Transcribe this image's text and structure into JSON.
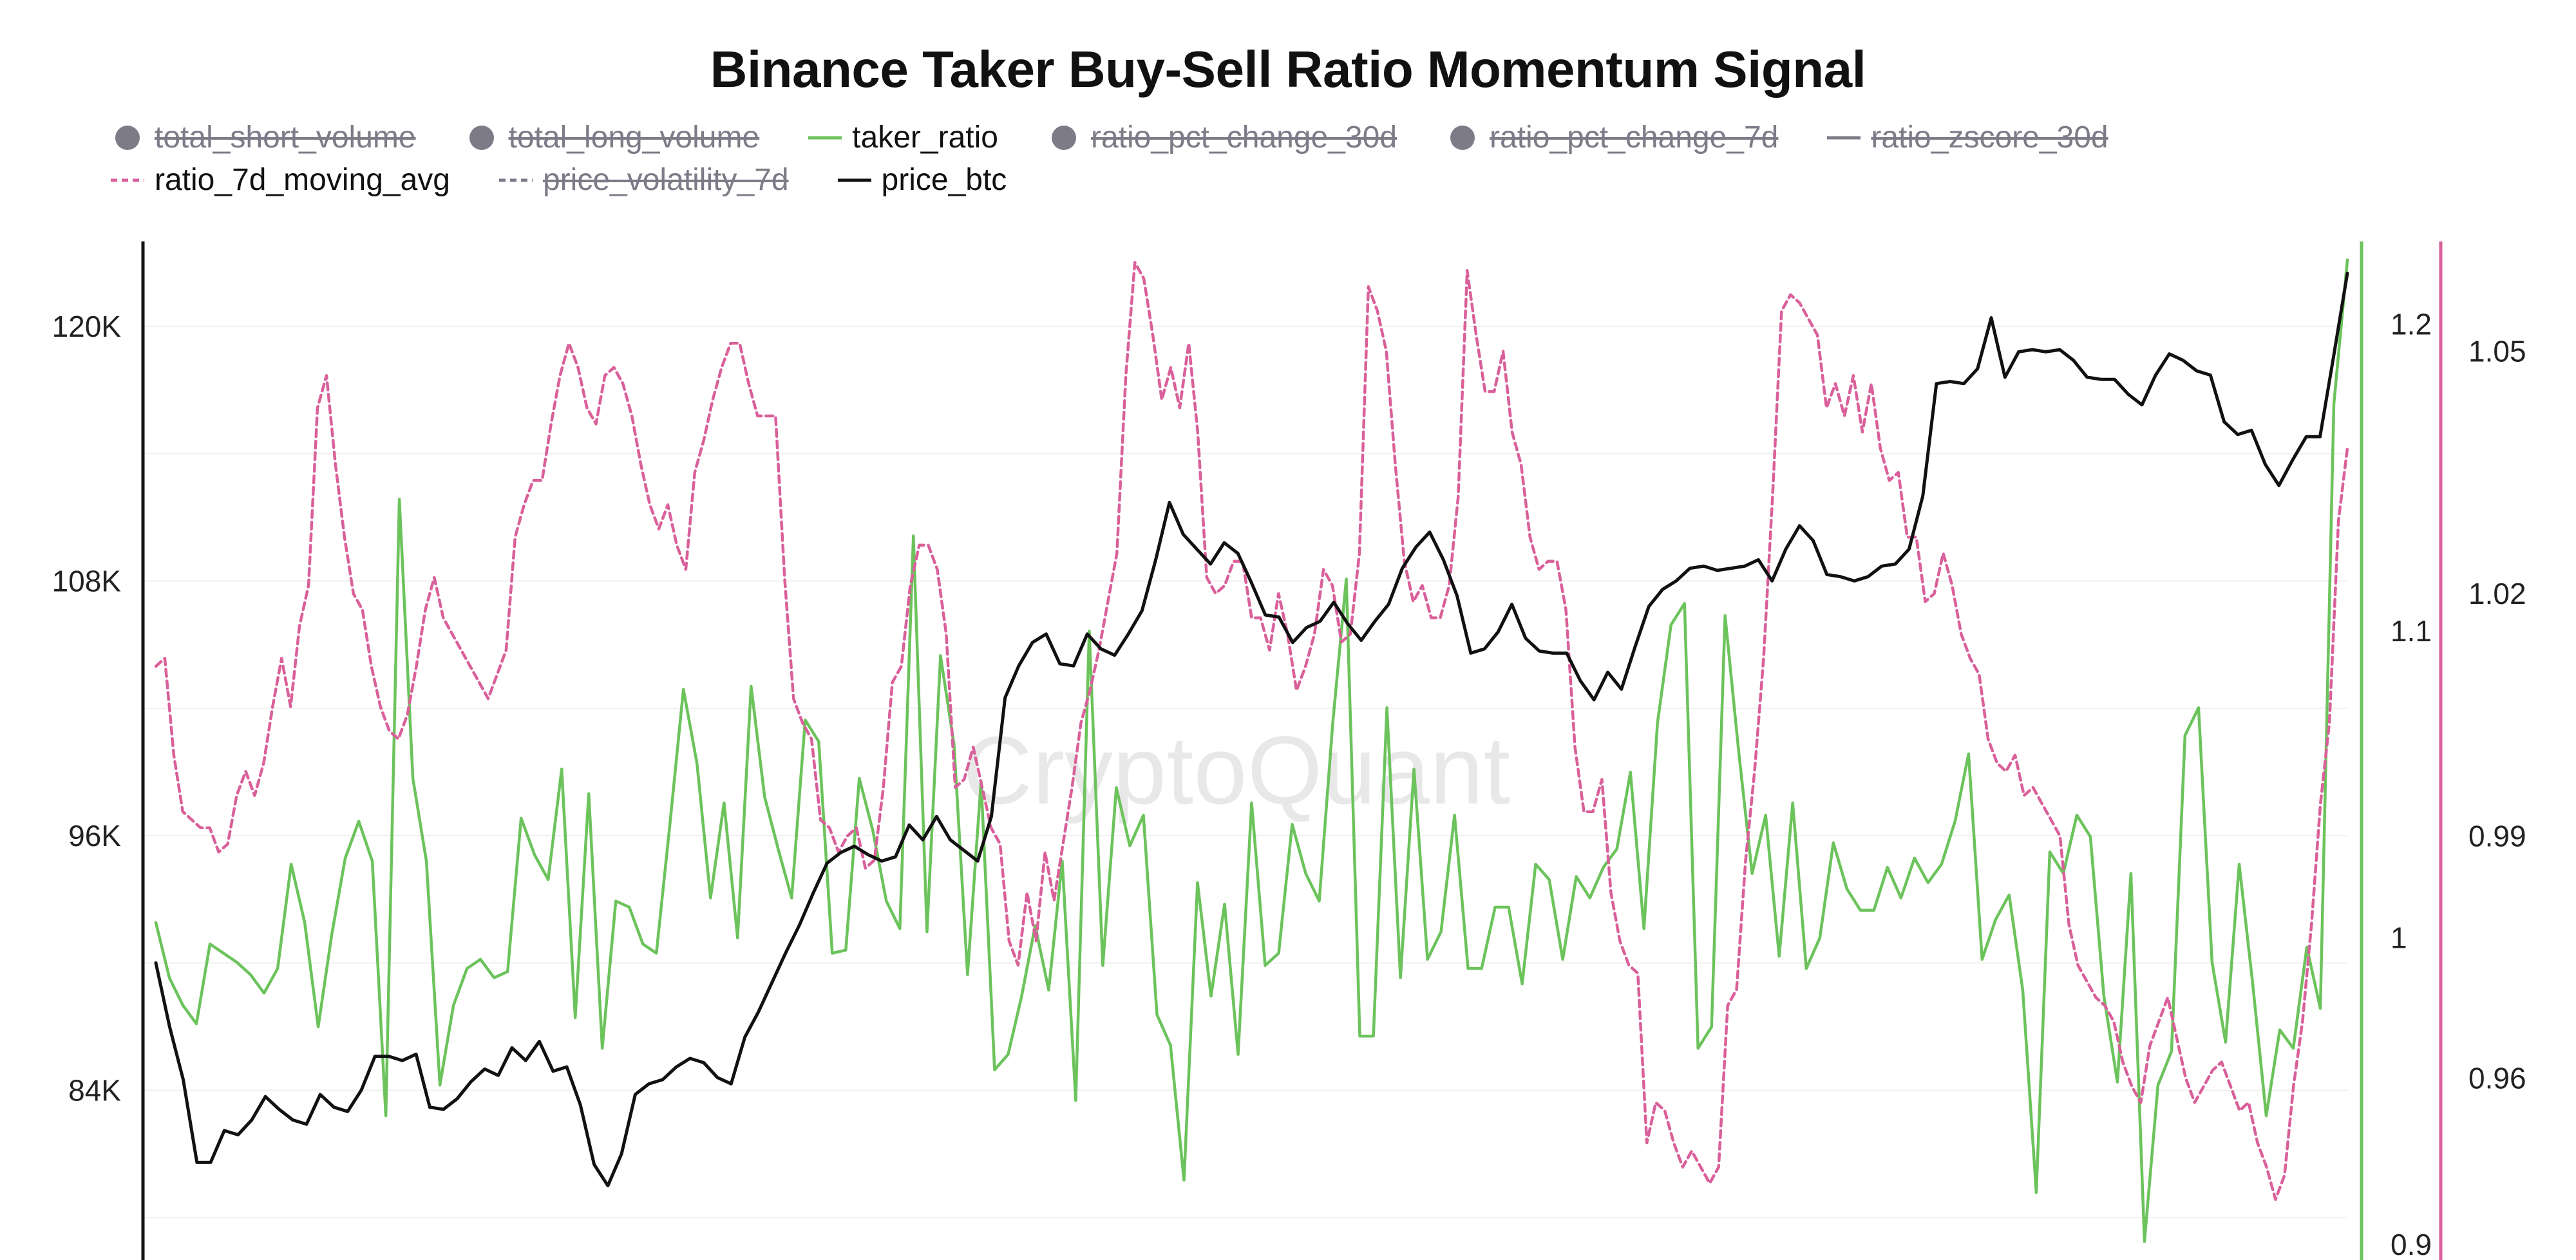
{
  "chart_data": {
    "type": "line",
    "title": "Binance Taker Buy-Sell Ratio Momentum Signal",
    "watermark": "CryptoQuant",
    "grid": true,
    "legend": {
      "placement": "top",
      "items": [
        {
          "name": "total_short_volume",
          "marker": "circle",
          "color": "#7d7b87",
          "hidden": true
        },
        {
          "name": "total_long_volume",
          "marker": "circle",
          "color": "#7d7b87",
          "hidden": true
        },
        {
          "name": "taker_ratio",
          "marker": "line",
          "color": "#6cc35c",
          "hidden": false
        },
        {
          "name": "ratio_pct_change_30d",
          "marker": "circle",
          "color": "#7d7b87",
          "hidden": true
        },
        {
          "name": "ratio_pct_change_7d",
          "marker": "circle",
          "color": "#7d7b87",
          "hidden": true
        },
        {
          "name": "ratio_zscore_30d",
          "marker": "line",
          "color": "#7d7b87",
          "hidden": true
        },
        {
          "name": "ratio_7d_moving_avg",
          "marker": "dashed",
          "color": "#d9609a",
          "hidden": false
        },
        {
          "name": "price_volatility_7d",
          "marker": "dashed",
          "color": "#7d7b87",
          "hidden": true
        },
        {
          "name": "price_btc",
          "marker": "line",
          "color": "#111111",
          "hidden": false
        }
      ]
    },
    "axes": {
      "left": {
        "series": "price_btc",
        "ticks": [
          "84K",
          "96K",
          "108K",
          "120K"
        ],
        "tick_values": [
          84000,
          96000,
          108000,
          120000
        ],
        "range": [
          76000,
          124000
        ]
      },
      "right_inner": {
        "series": "taker_ratio",
        "ticks": [
          "0.9",
          "1",
          "1.1",
          "1.2"
        ],
        "tick_values": [
          0.9,
          1.0,
          1.1,
          1.2
        ],
        "range": [
          0.895,
          1.227
        ],
        "color": "#6cc35c"
      },
      "right_outer": {
        "series": "ratio_7d_moving_avg",
        "ticks": [
          "0.96",
          "0.99",
          "1.02",
          "1.05"
        ],
        "tick_values": [
          0.96,
          0.99,
          1.02,
          1.05
        ],
        "range": [
          0.9375,
          1.0636
        ],
        "color": "#d9609a"
      }
    },
    "series": [
      {
        "name": "taker_ratio",
        "axis": "right_inner",
        "color": "#6cc35c",
        "values": [
          1.005,
          0.987,
          0.978,
          0.972,
          0.998,
          0.995,
          0.992,
          0.988,
          0.982,
          0.99,
          1.024,
          1.005,
          0.971,
          1.001,
          1.026,
          1.038,
          1.025,
          0.942,
          1.143,
          1.052,
          1.025,
          0.952,
          0.978,
          0.99,
          0.993,
          0.987,
          0.989,
          1.039,
          1.027,
          1.019,
          1.055,
          0.974,
          1.047,
          0.964,
          1.012,
          1.01,
          0.998,
          0.995,
          1.037,
          1.081,
          1.057,
          1.013,
          1.044,
          1.0,
          1.082,
          1.046,
          1.029,
          1.013,
          1.071,
          1.064,
          0.995,
          0.996,
          1.052,
          1.035,
          1.012,
          1.003,
          1.131,
          1.002,
          1.092,
          1.063,
          0.988,
          1.051,
          0.957,
          0.962,
          0.981,
          1.004,
          0.983,
          1.025,
          0.947,
          1.1,
          0.991,
          1.049,
          1.03,
          1.04,
          0.975,
          0.965,
          0.921,
          1.018,
          0.981,
          1.011,
          0.962,
          1.044,
          0.991,
          0.995,
          1.037,
          1.021,
          1.012,
          1.07,
          1.117,
          0.968,
          0.968,
          1.075,
          0.987,
          1.055,
          0.993,
          1.002,
          1.04,
          0.99,
          0.99,
          1.01,
          1.01,
          0.985,
          1.024,
          1.019,
          0.993,
          1.02,
          1.013,
          1.023,
          1.029,
          1.054,
          1.003,
          1.07,
          1.102,
          1.109,
          0.964,
          0.971,
          1.105,
          1.061,
          1.021,
          1.04,
          0.994,
          1.044,
          0.99,
          1.0,
          1.031,
          1.016,
          1.009,
          1.009,
          1.023,
          1.013,
          1.026,
          1.018,
          1.024,
          1.038,
          1.06,
          0.993,
          1.006,
          1.014,
          0.983,
          0.917,
          1.028,
          1.021,
          1.04,
          1.033,
          0.981,
          0.953,
          1.021,
          0.901,
          0.952,
          0.963,
          1.066,
          1.075,
          0.992,
          0.966,
          1.024,
          0.985,
          0.942,
          0.97,
          0.964,
          0.997,
          0.977,
          1.174,
          1.221
        ]
      },
      {
        "name": "ratio_7d_moving_avg",
        "axis": "right_outer",
        "color": "#d9609a",
        "values": [
          1.011,
          1.012,
          1.0,
          0.993,
          0.992,
          0.991,
          0.991,
          0.988,
          0.989,
          0.995,
          0.998,
          0.995,
          0.999,
          1.006,
          1.012,
          1.006,
          1.016,
          1.021,
          1.043,
          1.047,
          1.036,
          1.027,
          1.02,
          1.018,
          1.011,
          1.006,
          1.003,
          1.002,
          1.005,
          1.011,
          1.018,
          1.022,
          1.017,
          1.015,
          1.013,
          1.011,
          1.009,
          1.007,
          1.01,
          1.013,
          1.027,
          1.031,
          1.034,
          1.034,
          1.041,
          1.047,
          1.051,
          1.048,
          1.043,
          1.041,
          1.047,
          1.048,
          1.046,
          1.042,
          1.036,
          1.031,
          1.028,
          1.031,
          1.026,
          1.023,
          1.035,
          1.039,
          1.044,
          1.048,
          1.051,
          1.051,
          1.046,
          1.042,
          1.042,
          1.042,
          1.022,
          1.007,
          1.004,
          1.002,
          0.992,
          0.991,
          0.988,
          0.99,
          0.991,
          0.986,
          0.987,
          0.996,
          1.009,
          1.011,
          1.021,
          1.026,
          1.026,
          1.023,
          1.015,
          0.996,
          0.997,
          1.001,
          0.996,
          0.991,
          0.989,
          0.977,
          0.974,
          0.983,
          0.977,
          0.988,
          0.982,
          0.989,
          0.996,
          1.004,
          1.008,
          1.013,
          1.019,
          1.025,
          1.047,
          1.061,
          1.059,
          1.052,
          1.044,
          1.048,
          1.043,
          1.051,
          1.04,
          1.022,
          1.02,
          1.021,
          1.024,
          1.024,
          1.017,
          1.017,
          1.013,
          1.02,
          1.015,
          1.008,
          1.011,
          1.015,
          1.023,
          1.021,
          1.014,
          1.015,
          1.025,
          1.058,
          1.055,
          1.05,
          1.036,
          1.024,
          1.019,
          1.021,
          1.017,
          1.017,
          1.021,
          1.032,
          1.06,
          1.052,
          1.045,
          1.045,
          1.05,
          1.04,
          1.036,
          1.027,
          1.023,
          1.024,
          1.024,
          1.018,
          1.001,
          0.993,
          0.993,
          0.997,
          0.983,
          0.977,
          0.974,
          0.973,
          0.952,
          0.957,
          0.956,
          0.952,
          0.949,
          0.951,
          0.949,
          0.947,
          0.949,
          0.969,
          0.971,
          0.987,
          0.998,
          1.012,
          1.032,
          1.055,
          1.057,
          1.056,
          1.054,
          1.052,
          1.043,
          1.046,
          1.042,
          1.047,
          1.04,
          1.046,
          1.038,
          1.034,
          1.035,
          1.027,
          1.027,
          1.019,
          1.02,
          1.025,
          1.021,
          1.015,
          1.012,
          1.01,
          1.002,
          0.999,
          0.998,
          1.0,
          0.995,
          0.996,
          0.994,
          0.992,
          0.99,
          0.979,
          0.974,
          0.972,
          0.97,
          0.969,
          0.967,
          0.962,
          0.959,
          0.957,
          0.964,
          0.967,
          0.97,
          0.965,
          0.96,
          0.957,
          0.959,
          0.961,
          0.962,
          0.959,
          0.956,
          0.957,
          0.952,
          0.949,
          0.945,
          0.948,
          0.959,
          0.967,
          0.979,
          0.994,
          1.004,
          1.029,
          1.038
        ]
      },
      {
        "name": "price_btc",
        "axis": "left",
        "color": "#111111",
        "values": [
          90000,
          87000,
          84500,
          80600,
          80600,
          82100,
          81900,
          82600,
          83700,
          83100,
          82600,
          82400,
          83800,
          83200,
          83000,
          84000,
          85600,
          85600,
          85400,
          85700,
          83200,
          83100,
          83600,
          84400,
          85000,
          84700,
          86000,
          85400,
          86300,
          84900,
          85100,
          83300,
          80500,
          79500,
          81000,
          83800,
          84300,
          84500,
          85100,
          85500,
          85300,
          84600,
          84300,
          86500,
          87700,
          89100,
          90500,
          91800,
          93300,
          94700,
          95200,
          95500,
          95100,
          94800,
          95000,
          96500,
          95800,
          96900,
          95800,
          95300,
          94800,
          96900,
          102500,
          104000,
          105100,
          105500,
          104100,
          104000,
          105500,
          104800,
          104500,
          105500,
          106600,
          109000,
          111700,
          110200,
          109500,
          108800,
          109800,
          109300,
          107900,
          106400,
          106300,
          105100,
          105800,
          106100,
          107000,
          106000,
          105200,
          106100,
          106900,
          108600,
          109600,
          110300,
          109000,
          107300,
          104600,
          104800,
          105600,
          106900,
          105300,
          104700,
          104600,
          104600,
          103300,
          102400,
          103700,
          102900,
          104900,
          106800,
          107600,
          108000,
          108600,
          108700,
          108500,
          108600,
          108700,
          109000,
          108000,
          109500,
          110600,
          109900,
          108300,
          108200,
          108000,
          108200,
          108700,
          108800,
          109500,
          112000,
          117300,
          117400,
          117300,
          118000,
          120400,
          117600,
          118800,
          118900,
          118800,
          118900,
          118400,
          117600,
          117500,
          117500,
          116800,
          116300,
          117700,
          118700,
          118400,
          117900,
          117700,
          115500,
          114900,
          115100,
          113500,
          112500,
          113700,
          114800,
          114800,
          118600,
          122500
        ]
      }
    ]
  }
}
